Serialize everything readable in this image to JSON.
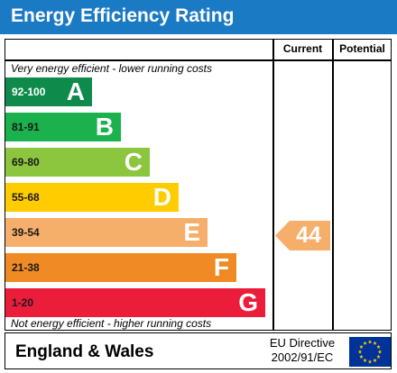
{
  "header": {
    "title": "Energy Efficiency Rating"
  },
  "columns": {
    "current": "Current",
    "potential": "Potential"
  },
  "notes": {
    "top": "Very energy efficient - lower running costs",
    "bottom": "Not energy efficient - higher running costs"
  },
  "chart_data": {
    "type": "bar",
    "title": "Energy Efficiency Rating",
    "categories": [
      "A",
      "B",
      "C",
      "D",
      "E",
      "F",
      "G"
    ],
    "ranges": [
      "92-100",
      "81-91",
      "69-80",
      "55-68",
      "39-54",
      "21-38",
      "1-20"
    ],
    "colors": [
      "#0e8b4b",
      "#1bb14d",
      "#8cc63f",
      "#ffcc00",
      "#f6ae6b",
      "#f08a24",
      "#ec1c3b"
    ],
    "current": {
      "value": 44,
      "band": "E",
      "color": "#f6ae6b"
    },
    "potential": null
  },
  "footer": {
    "region": "England & Wales",
    "directive_line1": "EU Directive",
    "directive_line2": "2002/91/EC",
    "flag_icon": "eu-flag-icon",
    "flag_color": "#003399",
    "star_color": "#ffcc00"
  }
}
